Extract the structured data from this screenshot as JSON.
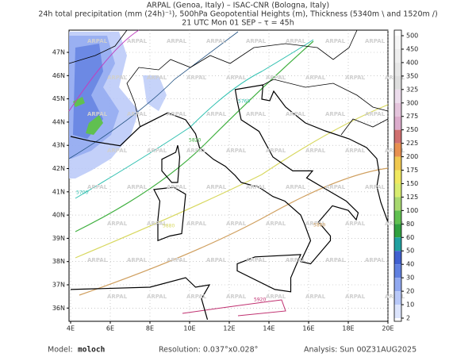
{
  "header": {
    "line1": "ARPAL (Genoa, Italy)  –  ISAC-CNR (Bologna, Italy)",
    "line2": "24h total precipitation (mm (24h)⁻¹), 500hPa Geopotential Heights (m), Thickness (5340m \\ and 1520m /)",
    "line3": "21 UTC Mon 01 SEP  –  τ = 45h"
  },
  "map": {
    "lon_ticks": [
      "4E",
      "6E",
      "8E",
      "10E",
      "12E",
      "14E",
      "16E",
      "18E",
      "20E"
    ],
    "lat_ticks": [
      "47N",
      "46N",
      "45N",
      "44N",
      "43N",
      "42N",
      "41N",
      "40N",
      "39N",
      "38N",
      "37N",
      "36N"
    ],
    "watermark": "ARPAL",
    "contour_labels": [
      "5760",
      "5700",
      "5820",
      "5880",
      "5880",
      "5920"
    ]
  },
  "colorbar": {
    "levels": [
      500,
      450,
      400,
      350,
      325,
      300,
      275,
      250,
      225,
      200,
      175,
      150,
      125,
      100,
      80,
      60,
      50,
      40,
      30,
      20,
      10,
      2
    ],
    "colors": [
      "#f6f6f6",
      "#eeeeee",
      "#e6e6e6",
      "#dedede",
      "#ecdcec",
      "#e4c4dc",
      "#dcaccc",
      "#d07070",
      "#e89050",
      "#f0c850",
      "#f0e860",
      "#d8ec70",
      "#a8d870",
      "#60c050",
      "#30a040",
      "#20a0a0",
      "#4060d0",
      "#6080e0",
      "#90a8f0",
      "#b8c8f8",
      "#dce4fc"
    ]
  },
  "footer": {
    "model_label": "Model:",
    "model": "moloch",
    "resolution": "Resolution: 0.037°x0.028°",
    "analysis": "Analysis: Sun 00Z31AUG2025"
  }
}
